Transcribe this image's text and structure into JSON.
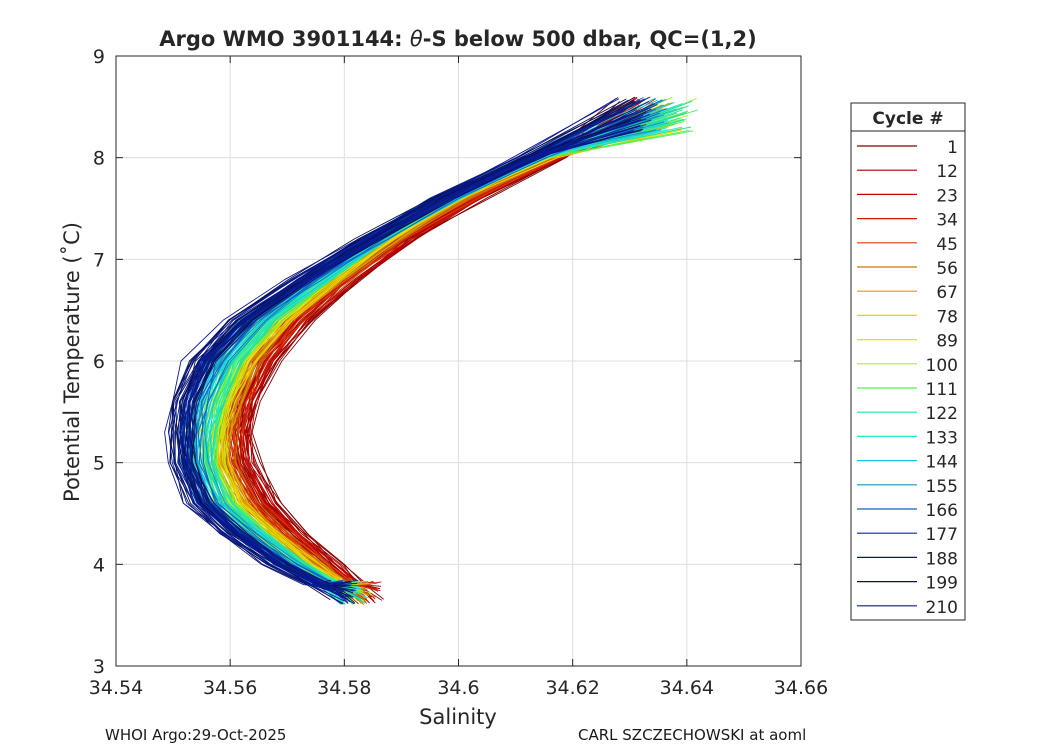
{
  "chart_data": {
    "type": "line",
    "title_prefix": "Argo WMO 3901144: ",
    "title_theta": "θ",
    "title_suffix": "-S below 500 dbar,  QC=(1,2)",
    "xlabel": "Salinity",
    "ylabel": "Potential Temperature (˚C)",
    "xlim": [
      34.54,
      34.66
    ],
    "ylim": [
      3,
      9
    ],
    "xticks": [
      34.54,
      34.56,
      34.58,
      34.6,
      34.62,
      34.64,
      34.66
    ],
    "xtick_labels": [
      "34.54",
      "34.56",
      "34.58",
      "34.6",
      "34.62",
      "34.64",
      "34.66"
    ],
    "yticks": [
      3,
      4,
      5,
      6,
      7,
      8,
      9
    ],
    "ytick_labels": [
      "3",
      "4",
      "5",
      "6",
      "7",
      "8",
      "9"
    ],
    "grid": true,
    "legend": {
      "title": "Cycle #",
      "placement": "outside-right",
      "entries": [
        {
          "label": "1",
          "color": "#7f0000"
        },
        {
          "label": "12",
          "color": "#a30000"
        },
        {
          "label": "23",
          "color": "#c30000"
        },
        {
          "label": "34",
          "color": "#cc1a00"
        },
        {
          "label": "45",
          "color": "#d84000"
        },
        {
          "label": "56",
          "color": "#c87800"
        },
        {
          "label": "67",
          "color": "#d4a000"
        },
        {
          "label": "78",
          "color": "#f0d000"
        },
        {
          "label": "89",
          "color": "#d8e800"
        },
        {
          "label": "100",
          "color": "#a8f020"
        },
        {
          "label": "111",
          "color": "#50f050"
        },
        {
          "label": "122",
          "color": "#20e0a0"
        },
        {
          "label": "133",
          "color": "#20e8d0"
        },
        {
          "label": "144",
          "color": "#10c8e0"
        },
        {
          "label": "155",
          "color": "#1890b8"
        },
        {
          "label": "166",
          "color": "#1060c8"
        },
        {
          "label": "177",
          "color": "#0a2a90"
        },
        {
          "label": "188",
          "color": "#0a1a70"
        },
        {
          "label": "199",
          "color": "#081050"
        },
        {
          "label": "210",
          "color": "#0a1a9a"
        }
      ]
    },
    "series_envelope": {
      "description": "one theta-S profile per cycle; shape follows the median curve, shifted in salinity by group",
      "theta": [
        3.6,
        3.8,
        4.0,
        4.3,
        4.6,
        5.0,
        5.3,
        5.6,
        6.0,
        6.4,
        6.8,
        7.2,
        7.6,
        8.0,
        8.3
      ],
      "salinity_by_group": [
        {
          "group": "early (red)",
          "values": [
            34.585,
            34.582,
            34.578,
            34.572,
            34.567,
            34.563,
            34.5625,
            34.5635,
            34.567,
            34.573,
            34.581,
            34.591,
            34.603,
            34.617,
            34.63
          ]
        },
        {
          "group": "middle (green-cyan)",
          "values": [
            34.582,
            34.578,
            34.572,
            34.565,
            34.559,
            34.556,
            34.5565,
            34.558,
            34.561,
            34.567,
            34.576,
            34.586,
            34.598,
            34.614,
            34.64
          ]
        },
        {
          "group": "late (blue)",
          "values": [
            34.58,
            34.575,
            34.568,
            34.56,
            34.554,
            34.551,
            34.5505,
            34.551,
            34.554,
            34.561,
            34.572,
            34.584,
            34.597,
            34.612,
            34.63
          ]
        }
      ]
    }
  },
  "footer": {
    "left": "WHOI Argo:29-Oct-2025",
    "right": "CARL SZCZECHOWSKI at aoml"
  }
}
